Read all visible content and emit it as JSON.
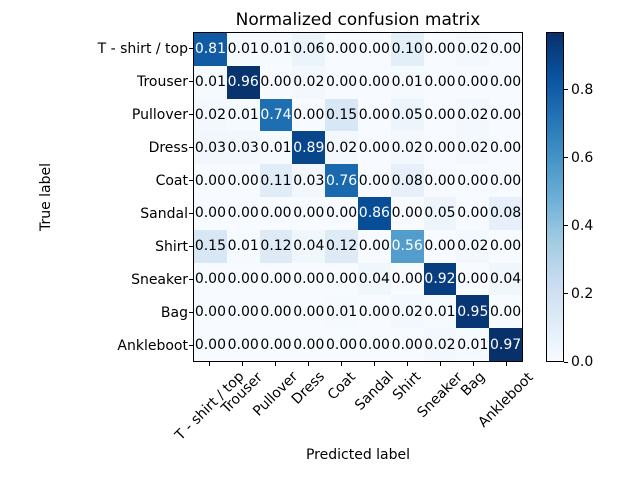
{
  "chart_data": {
    "type": "heatmap",
    "title": "Normalized confusion matrix",
    "xlabel": "Predicted label",
    "ylabel": "True label",
    "categories": [
      "T - shirt / top",
      "Trouser",
      "Pullover",
      "Dress",
      "Coat",
      "Sandal",
      "Shirt",
      "Sneaker",
      "Bag",
      "Ankleboot"
    ],
    "matrix": [
      [
        0.81,
        0.01,
        0.01,
        0.06,
        0.0,
        0.0,
        0.1,
        0.0,
        0.02,
        0.0
      ],
      [
        0.01,
        0.96,
        0.0,
        0.02,
        0.0,
        0.0,
        0.01,
        0.0,
        0.0,
        0.0
      ],
      [
        0.02,
        0.01,
        0.74,
        0.0,
        0.15,
        0.0,
        0.05,
        0.0,
        0.02,
        0.0
      ],
      [
        0.03,
        0.03,
        0.01,
        0.89,
        0.02,
        0.0,
        0.02,
        0.0,
        0.02,
        0.0
      ],
      [
        0.0,
        0.0,
        0.11,
        0.03,
        0.76,
        0.0,
        0.08,
        0.0,
        0.0,
        0.0
      ],
      [
        0.0,
        0.0,
        0.0,
        0.0,
        0.0,
        0.86,
        0.0,
        0.05,
        0.0,
        0.08
      ],
      [
        0.15,
        0.01,
        0.12,
        0.04,
        0.12,
        0.0,
        0.56,
        0.0,
        0.02,
        0.0
      ],
      [
        0.0,
        0.0,
        0.0,
        0.0,
        0.0,
        0.04,
        0.0,
        0.92,
        0.0,
        0.04
      ],
      [
        0.0,
        0.0,
        0.0,
        0.0,
        0.01,
        0.0,
        0.02,
        0.01,
        0.95,
        0.0
      ],
      [
        0.0,
        0.0,
        0.0,
        0.0,
        0.0,
        0.0,
        0.0,
        0.02,
        0.01,
        0.97
      ]
    ],
    "value_decimals": 2,
    "vmin": 0.0,
    "vmax": 0.97,
    "colormap": "Blues",
    "colormap_stops": [
      {
        "pos": 0.0,
        "rgb": [
          247,
          251,
          255
        ]
      },
      {
        "pos": 0.125,
        "rgb": [
          222,
          235,
          247
        ]
      },
      {
        "pos": 0.25,
        "rgb": [
          198,
          219,
          239
        ]
      },
      {
        "pos": 0.375,
        "rgb": [
          158,
          202,
          225
        ]
      },
      {
        "pos": 0.5,
        "rgb": [
          107,
          174,
          214
        ]
      },
      {
        "pos": 0.625,
        "rgb": [
          66,
          146,
          198
        ]
      },
      {
        "pos": 0.75,
        "rgb": [
          33,
          113,
          181
        ]
      },
      {
        "pos": 0.875,
        "rgb": [
          8,
          81,
          156
        ]
      },
      {
        "pos": 1.0,
        "rgb": [
          8,
          48,
          107
        ]
      }
    ],
    "colorbar_ticks": [
      "0.0",
      "0.2",
      "0.4",
      "0.6",
      "0.8"
    ],
    "legend_position": "right-colorbar",
    "grid": false,
    "cell_text_color_high": "#ffffff",
    "cell_text_color_low": "#000000",
    "axis_color": "#000000",
    "background": "#ffffff"
  }
}
